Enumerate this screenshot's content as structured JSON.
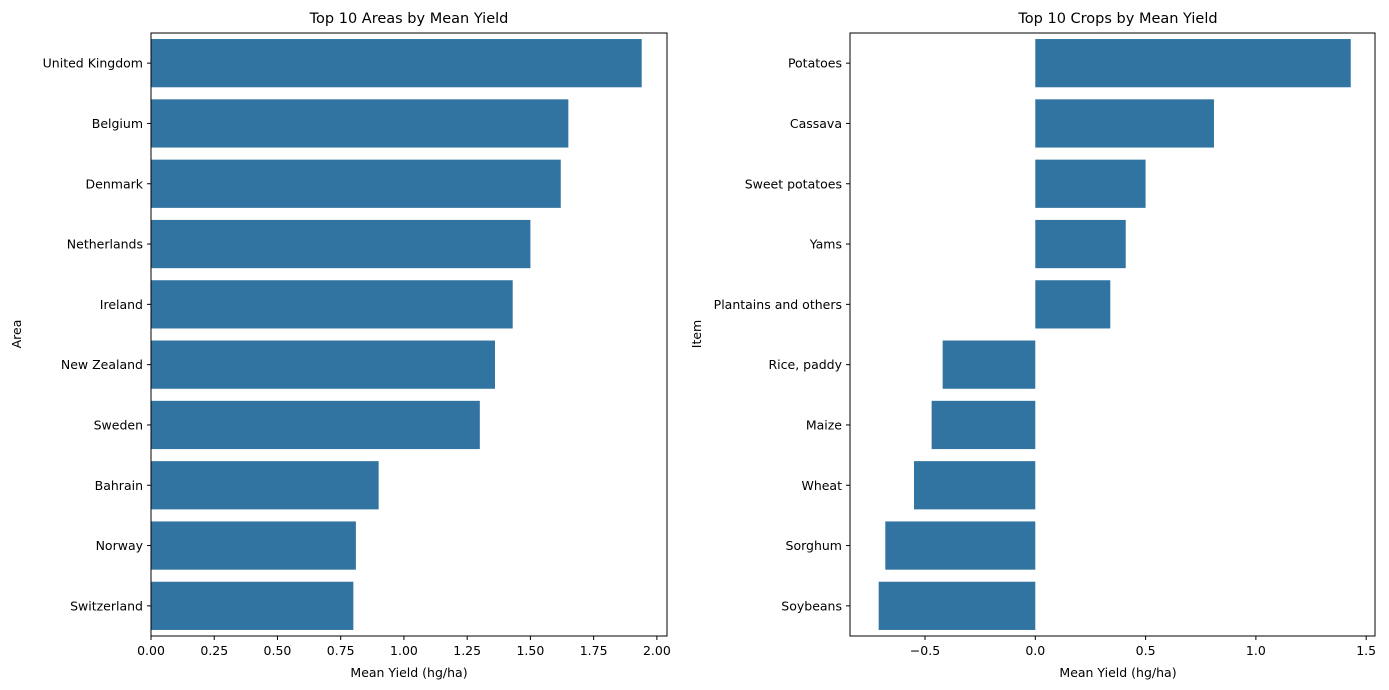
{
  "chart_data": [
    {
      "type": "bar",
      "orientation": "horizontal",
      "title": "Top 10 Areas by Mean Yield",
      "xlabel": "Mean Yield (hg/ha)",
      "ylabel": "Area",
      "categories": [
        "United Kingdom",
        "Belgium",
        "Denmark",
        "Netherlands",
        "Ireland",
        "New Zealand",
        "Sweden",
        "Bahrain",
        "Norway",
        "Switzerland"
      ],
      "values": [
        1.94,
        1.65,
        1.62,
        1.5,
        1.43,
        1.36,
        1.3,
        0.9,
        0.81,
        0.8
      ],
      "xlim": [
        0,
        2.04
      ],
      "xticks": [
        0,
        0.25,
        0.5,
        0.75,
        1,
        1.25,
        1.5,
        1.75,
        2
      ],
      "xtick_labels": [
        "0.00",
        "0.25",
        "0.50",
        "0.75",
        "1.00",
        "1.25",
        "1.50",
        "1.75",
        "2.00"
      ],
      "grid": false,
      "bar_color": "#3274a1"
    },
    {
      "type": "bar",
      "orientation": "horizontal",
      "title": "Top 10 Crops by Mean Yield",
      "xlabel": "Mean Yield (hg/ha)",
      "ylabel": "Item",
      "categories": [
        "Potatoes",
        "Cassava",
        "Sweet potatoes",
        "Yams",
        "Plantains and others",
        "Rice, paddy",
        "Maize",
        "Wheat",
        "Sorghum",
        "Soybeans"
      ],
      "values": [
        1.43,
        0.81,
        0.5,
        0.41,
        0.34,
        -0.42,
        -0.47,
        -0.55,
        -0.68,
        -0.71
      ],
      "xlim": [
        -0.84,
        1.54
      ],
      "xticks": [
        -0.5,
        0,
        0.5,
        1,
        1.5
      ],
      "xtick_labels": [
        "−0.5",
        "0.0",
        "0.5",
        "1.0",
        "1.5"
      ],
      "grid": false,
      "bar_color": "#3274a1"
    }
  ]
}
